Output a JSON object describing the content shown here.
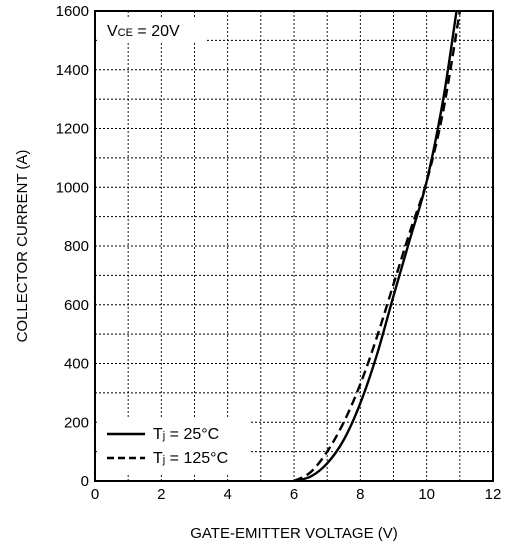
{
  "chart_data": {
    "type": "line",
    "xlabel": "GATE-EMITTER VOLTAGE (V)",
    "ylabel": "COLLECTOR CURRENT (A)",
    "xlim": [
      0,
      12
    ],
    "ylim": [
      0,
      1600
    ],
    "x_major_ticks": [
      0,
      2,
      4,
      6,
      8,
      10,
      12
    ],
    "y_major_ticks": [
      0,
      200,
      400,
      600,
      800,
      1000,
      1200,
      1400,
      1600
    ],
    "x_minor_step": 1,
    "y_minor_step": 100,
    "grid": true,
    "legend_position": "bottom-left",
    "annotation": {
      "prefix": "V",
      "subscript": "CE",
      "suffix": " = 20V"
    },
    "series": [
      {
        "name_prefix": "T",
        "name_subscript": "j",
        "name_suffix": " = 25°C",
        "style": "solid",
        "color": "#000000",
        "x": [
          6.0,
          6.5,
          7.0,
          7.5,
          8.0,
          8.5,
          9.0,
          9.5,
          10.0,
          10.5,
          10.9
        ],
        "y": [
          0,
          15,
          60,
          140,
          265,
          430,
          630,
          825,
          1020,
          1300,
          1600
        ]
      },
      {
        "name_prefix": "T",
        "name_subscript": "j",
        "name_suffix": " = 125°C",
        "style": "dashed",
        "color": "#000000",
        "x": [
          6.0,
          6.5,
          7.0,
          7.5,
          8.0,
          8.5,
          9.0,
          9.5,
          10.0,
          10.5,
          11.0
        ],
        "y": [
          0,
          30,
          100,
          200,
          330,
          490,
          670,
          850,
          1020,
          1260,
          1600
        ]
      }
    ]
  }
}
